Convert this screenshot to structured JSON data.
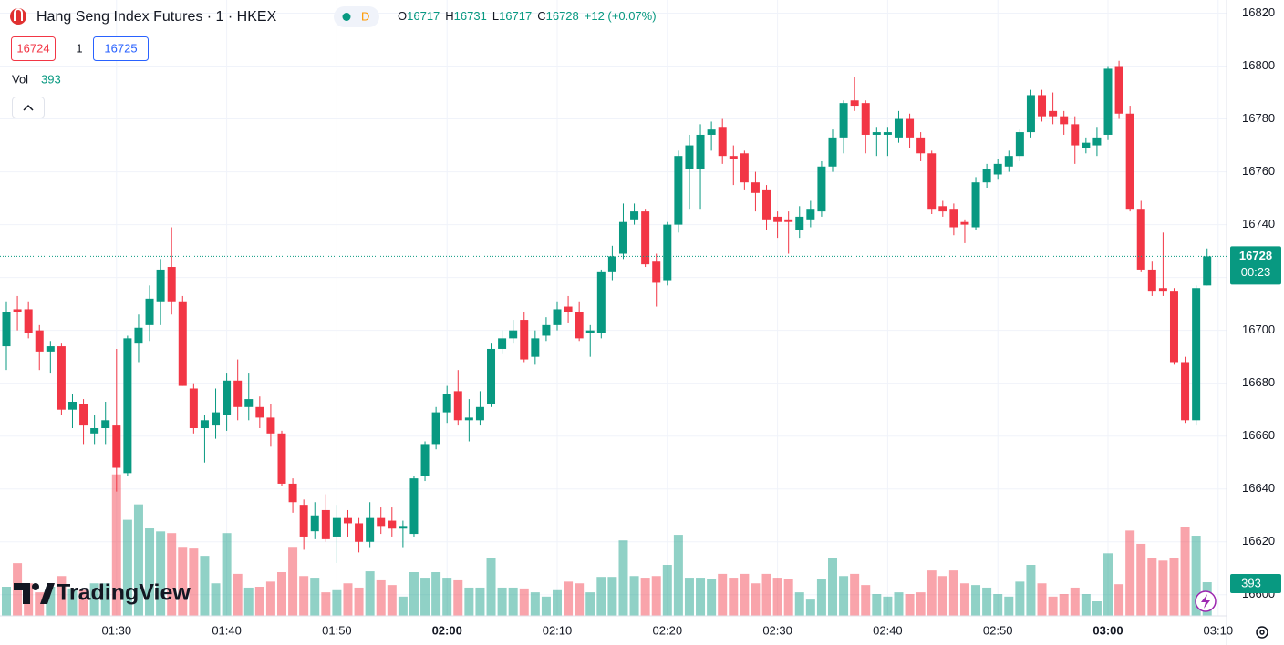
{
  "header": {
    "symbol": "Hang Seng Index Futures · 1 · HKEX",
    "session": "D",
    "labels": {
      "open": "O",
      "high": "H",
      "low": "L",
      "close": "C"
    },
    "change": "+12 (+0.07%)"
  },
  "order": {
    "bid": 16724,
    "qty": 1,
    "ask": 16725
  },
  "volume_label": "Vol",
  "countdown": "00:23",
  "logo": "TradingView",
  "chart_data": {
    "type": "candlestick",
    "x": [
      "01:20",
      "01:21",
      "01:22",
      "01:23",
      "01:24",
      "01:25",
      "01:26",
      "01:27",
      "01:28",
      "01:29",
      "01:30",
      "01:31",
      "01:32",
      "01:33",
      "01:34",
      "01:35",
      "01:36",
      "01:37",
      "01:38",
      "01:39",
      "01:40",
      "01:41",
      "01:42",
      "01:43",
      "01:44",
      "01:45",
      "01:46",
      "01:47",
      "01:48",
      "01:49",
      "01:50",
      "01:51",
      "01:52",
      "01:53",
      "01:54",
      "01:55",
      "01:56",
      "01:57",
      "01:58",
      "01:59",
      "02:00",
      "02:01",
      "02:02",
      "02:03",
      "02:04",
      "02:05",
      "02:06",
      "02:07",
      "02:08",
      "02:09",
      "02:10",
      "02:11",
      "02:12",
      "02:13",
      "02:14",
      "02:15",
      "02:16",
      "02:17",
      "02:18",
      "02:19",
      "02:20",
      "02:21",
      "02:22",
      "02:23",
      "02:24",
      "02:25",
      "02:26",
      "02:27",
      "02:28",
      "02:29",
      "02:30",
      "02:31",
      "02:32",
      "02:33",
      "02:34",
      "02:35",
      "02:36",
      "02:37",
      "02:38",
      "02:39",
      "02:40",
      "02:41",
      "02:42",
      "02:43",
      "02:44",
      "02:45",
      "02:46",
      "02:47",
      "02:48",
      "02:49",
      "02:50",
      "02:51",
      "02:52",
      "02:53",
      "02:54",
      "02:55",
      "02:56",
      "02:57",
      "02:58",
      "02:59",
      "03:00",
      "03:01",
      "03:02",
      "03:03",
      "03:04",
      "03:05",
      "03:06",
      "03:07",
      "03:08",
      "03:09"
    ],
    "open": [
      16694,
      16708,
      16708,
      16700,
      16692,
      16694,
      16670,
      16672,
      16661,
      16663,
      16664,
      16646,
      16695,
      16702,
      16711,
      16724,
      16711,
      16678,
      16663,
      16664,
      16668,
      16681,
      16671,
      16671,
      16667,
      16661,
      16642,
      16634,
      16624,
      16632,
      16622,
      16629,
      16627,
      16620,
      16629,
      16628,
      16625,
      16623,
      16645,
      16657,
      16669,
      16677,
      16666,
      16666,
      16672,
      16693,
      16697,
      16704,
      16690,
      16698,
      16702,
      16709,
      16707,
      16699,
      16699,
      16722,
      16729,
      16742,
      16745,
      16726,
      16719,
      16740,
      16761,
      16761,
      16774,
      16777,
      16766,
      16767,
      16756,
      16753,
      16743,
      16742,
      16738,
      16742,
      16745,
      16762,
      16773,
      16787,
      16786,
      16774,
      16774,
      16773,
      16780,
      16773,
      16767,
      16747,
      16746,
      16741,
      16739,
      16756,
      16759,
      16762,
      16766,
      16775,
      16789,
      16783,
      16781,
      16778,
      16769,
      16770,
      16774,
      16800,
      16782,
      16746,
      16723,
      16716,
      16715,
      16688,
      16666,
      16717
    ],
    "high": [
      16711,
      16713,
      16711,
      16702,
      16696,
      16695,
      16676,
      16674,
      16668,
      16673,
      16693,
      16698,
      16706,
      16717,
      16727,
      16739,
      16713,
      16680,
      16668,
      16678,
      16684,
      16689,
      16684,
      16675,
      16672,
      16662,
      16644,
      16636,
      16635,
      16638,
      16634,
      16632,
      16629,
      16635,
      16633,
      16633,
      16628,
      16645,
      16658,
      16671,
      16679,
      16685,
      16674,
      16677,
      16695,
      16700,
      16704,
      16707,
      16700,
      16705,
      16711,
      16713,
      16711,
      16702,
      16723,
      16732,
      16748,
      16748,
      16746,
      16729,
      16741,
      16768,
      16774,
      16778,
      16779,
      16780,
      16770,
      16768,
      16760,
      16755,
      16745,
      16745,
      16747,
      16749,
      16764,
      16776,
      16787,
      16796,
      16787,
      16777,
      16777,
      16783,
      16782,
      16775,
      16768,
      16749,
      16748,
      16742,
      16758,
      16763,
      16765,
      16768,
      16776,
      16791,
      16791,
      16790,
      16783,
      16781,
      16773,
      16777,
      16800,
      16802,
      16785,
      16749,
      16726,
      16737,
      16716,
      16690,
      16717,
      16731
    ],
    "low": [
      16685,
      16700,
      16697,
      16685,
      16684,
      16668,
      16663,
      16657,
      16657,
      16657,
      16639,
      16645,
      16688,
      16696,
      16702,
      16706,
      16679,
      16661,
      16650,
      16659,
      16662,
      16666,
      16666,
      16663,
      16656,
      16641,
      16631,
      16617,
      16621,
      16620,
      16612,
      16622,
      16616,
      16618,
      16623,
      16622,
      16618,
      16622,
      16643,
      16655,
      16665,
      16664,
      16658,
      16664,
      16671,
      16691,
      16695,
      16688,
      16687,
      16696,
      16700,
      16703,
      16696,
      16690,
      16697,
      16719,
      16727,
      16740,
      16724,
      16709,
      16717,
      16737,
      16746,
      16746,
      16768,
      16763,
      16755,
      16753,
      16745,
      16738,
      16735,
      16729,
      16735,
      16739,
      16743,
      16760,
      16767,
      16783,
      16767,
      16766,
      16766,
      16771,
      16769,
      16764,
      16744,
      16743,
      16736,
      16733,
      16738,
      16754,
      16757,
      16760,
      16764,
      16773,
      16779,
      16778,
      16774,
      16763,
      16767,
      16766,
      16772,
      16780,
      16745,
      16722,
      16713,
      16713,
      16687,
      16665,
      16664,
      16717
    ],
    "close": [
      16707,
      16707,
      16699,
      16692,
      16694,
      16670,
      16673,
      16664,
      16663,
      16666,
      16648,
      16697,
      16701,
      16712,
      16723,
      16711,
      16679,
      16663,
      16666,
      16669,
      16681,
      16671,
      16674,
      16667,
      16661,
      16642,
      16635,
      16622,
      16630,
      16621,
      16629,
      16627,
      16620,
      16629,
      16626,
      16625,
      16626,
      16644,
      16657,
      16669,
      16676,
      16666,
      16667,
      16671,
      16693,
      16697,
      16700,
      16689,
      16697,
      16702,
      16708,
      16707,
      16697,
      16700,
      16722,
      16728,
      16741,
      16745,
      16725,
      16718,
      16740,
      16766,
      16770,
      16774,
      16776,
      16766,
      16765,
      16756,
      16752,
      16742,
      16741,
      16741,
      16743,
      16746,
      16762,
      16773,
      16786,
      16785,
      16774,
      16775,
      16775,
      16780,
      16773,
      16767,
      16746,
      16745,
      16739,
      16740,
      16756,
      16761,
      16763,
      16766,
      16775,
      16789,
      16781,
      16781,
      16778,
      16770,
      16771,
      16773,
      16799,
      16782,
      16746,
      16723,
      16715,
      16715,
      16688,
      16666,
      16716,
      16728
    ],
    "volume": [
      340,
      615,
      380,
      275,
      340,
      465,
      320,
      300,
      380,
      380,
      1650,
      1120,
      1300,
      1020,
      985,
      965,
      805,
      785,
      700,
      380,
      965,
      490,
      330,
      340,
      400,
      510,
      805,
      465,
      435,
      275,
      300,
      380,
      330,
      520,
      415,
      360,
      225,
      510,
      435,
      510,
      435,
      415,
      330,
      330,
      680,
      330,
      330,
      320,
      275,
      225,
      300,
      400,
      380,
      275,
      455,
      455,
      880,
      465,
      435,
      465,
      595,
      945,
      435,
      435,
      425,
      490,
      435,
      490,
      380,
      490,
      435,
      425,
      275,
      190,
      425,
      680,
      465,
      490,
      360,
      255,
      225,
      275,
      255,
      275,
      530,
      465,
      530,
      380,
      360,
      330,
      255,
      225,
      400,
      595,
      380,
      225,
      255,
      330,
      255,
      170,
      730,
      370,
      995,
      840,
      680,
      645,
      680,
      1040,
      935,
      393
    ],
    "up_color": "#089981",
    "down_color": "#f23645",
    "ylim": [
      16592,
      16825
    ],
    "yticks": [
      16600,
      16620,
      16640,
      16660,
      16680,
      16700,
      16720,
      16740,
      16760,
      16780,
      16800,
      16820
    ],
    "xticks": [
      "01:30",
      "01:40",
      "01:50",
      "02:00",
      "02:10",
      "02:20",
      "02:30",
      "02:40",
      "02:50",
      "03:00",
      "03:10"
    ],
    "grid": true
  }
}
